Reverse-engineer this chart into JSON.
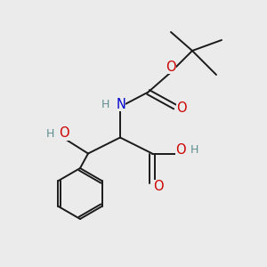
{
  "bg_color": "#ebebeb",
  "bond_color": "#1a1a1a",
  "o_color": "#cc0000",
  "n_color": "#0000cc",
  "h_color": "#5f8f8f",
  "figsize": [
    3.0,
    3.0
  ],
  "dpi": 100,
  "xlim": [
    0,
    10
  ],
  "ylim": [
    0,
    10
  ]
}
